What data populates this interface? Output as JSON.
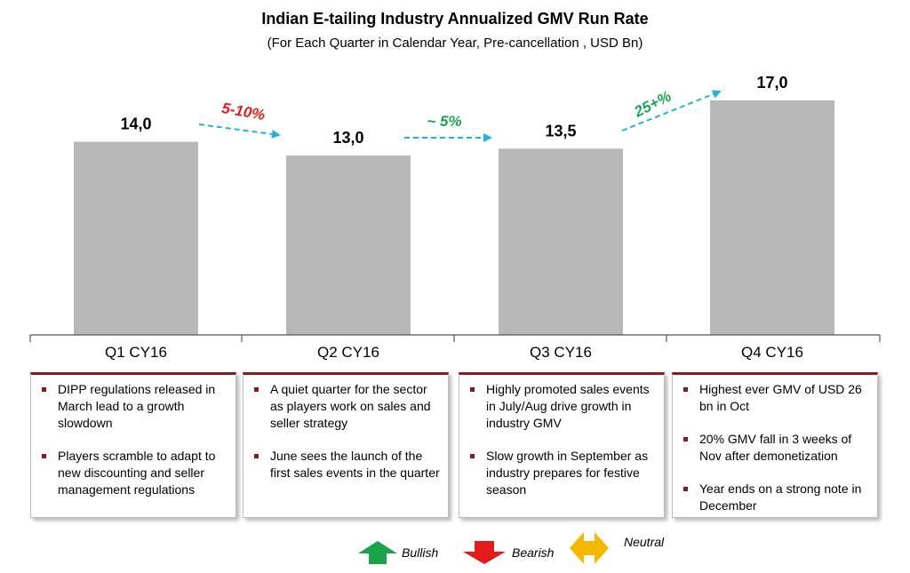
{
  "chart_data": {
    "type": "bar",
    "title": "Indian E-tailing Industry Annualized GMV Run Rate",
    "subtitle": "(For Each Quarter in Calendar Year, Pre-cancellation , USD Bn)",
    "categories": [
      "Q1 CY16",
      "Q2 CY16",
      "Q3 CY16",
      "Q4 CY16"
    ],
    "values": [
      14.0,
      13.0,
      13.5,
      17.0
    ],
    "value_labels": [
      "14,0",
      "13,0",
      "13,5",
      "17,0"
    ],
    "bar_color": "#b7b7b7",
    "growth_annotations": [
      {
        "label": "5-10%",
        "color": "#e31b1b"
      },
      {
        "label": "~ 5%",
        "color": "#1aa554"
      },
      {
        "label": "25+%",
        "color": "#1aa554"
      }
    ],
    "arrow_color": "#22b4d6",
    "ylim": [
      0,
      17.0
    ],
    "grid": false
  },
  "notes": [
    [
      "DIPP regulations released in March lead to a growth slowdown",
      "Players scramble to adapt to new discounting and seller management regulations"
    ],
    [
      "A quiet quarter for the sector as players work on sales and seller strategy",
      "June sees the launch of the first sales events in the quarter"
    ],
    [
      "Highly promoted sales events in July/Aug drive growth in industry GMV",
      "Slow growth in September as industry prepares for festive season"
    ],
    [
      "Highest ever GMV of USD 26 bn in Oct",
      "20% GMV fall in 3 weeks of Nov after demonetization",
      "Year ends on a strong note in December"
    ]
  ],
  "legend": [
    {
      "label": "Bullish",
      "icon": "up-arrow-icon",
      "color": "#19a34a"
    },
    {
      "label": "Bearish",
      "icon": "down-arrow-icon",
      "color": "#e31b1b"
    },
    {
      "label": "Neutral",
      "icon": "left-right-arrow-icon",
      "color": "#f5b800"
    }
  ]
}
